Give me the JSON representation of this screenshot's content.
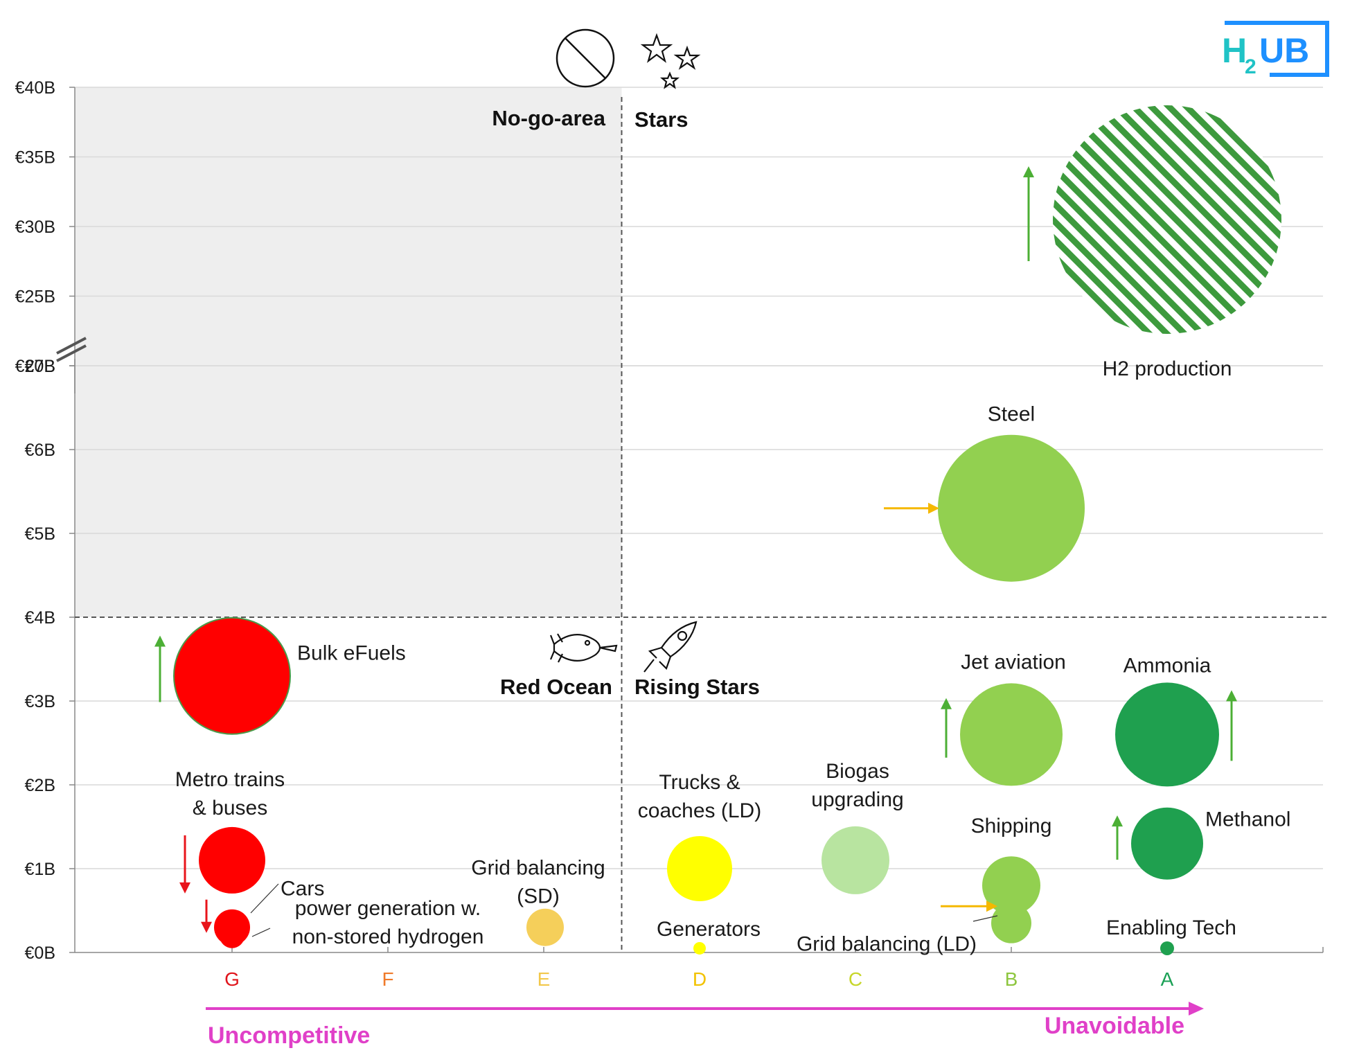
{
  "chart_data": {
    "type": "bubble",
    "y_axis": {
      "break_between": [
        "€7B",
        "€20B"
      ],
      "ticks": [
        "€0B",
        "€1B",
        "€2B",
        "€3B",
        "€4B",
        "€5B",
        "€6B",
        "€7B",
        "€20B",
        "€25B",
        "€30B",
        "€35B",
        "€40B"
      ]
    },
    "x_axis": {
      "categories": [
        "G",
        "F",
        "E",
        "D",
        "C",
        "B",
        "A"
      ],
      "category_colors": [
        "#e0141b",
        "#f07a2a",
        "#f2c84b",
        "#f2c200",
        "#c7d62a",
        "#8ec63f",
        "#1aa055"
      ],
      "left_label": "Uncompetitive",
      "right_label": "Unavoidable",
      "axis_label_color": "#e040c8"
    },
    "quadrants": {
      "top_left": "No-go-area",
      "top_right": "Stars",
      "bottom_left": "Red Ocean",
      "bottom_right": "Rising Stars",
      "x_split_between": [
        "E",
        "D"
      ],
      "y_split": 4
    },
    "logo": "H2UB",
    "series": [
      {
        "name": "H2 production",
        "x": "A",
        "y": 30.5,
        "color": "#3d9a3d",
        "hatched": true,
        "trend": "up"
      },
      {
        "name": "Steel",
        "x": "B",
        "y": 5.3,
        "color": "#92d050",
        "trend": "right"
      },
      {
        "name": "Bulk eFuels",
        "x": "G",
        "y": 3.3,
        "color": "#ff0000",
        "trend": "up"
      },
      {
        "name": "Jet aviation",
        "x": "B",
        "y": 2.6,
        "color": "#92d050",
        "trend": "up"
      },
      {
        "name": "Ammonia",
        "x": "A",
        "y": 2.6,
        "color": "#1fa04f",
        "trend": "up"
      },
      {
        "name": "Methanol",
        "x": "A",
        "y": 1.3,
        "color": "#1fa04f",
        "trend": "up"
      },
      {
        "name": "Metro trains & buses",
        "x": "G",
        "y": 1.1,
        "color": "#ff0000",
        "trend": "down"
      },
      {
        "name": "Cars",
        "x": "G",
        "y": 0.3,
        "color": "#ff0000",
        "trend": "down"
      },
      {
        "name": "power generation w. non-stored hydrogen",
        "x": "G",
        "y": 0.2,
        "color": "#ff0000"
      },
      {
        "name": "Grid balancing (SD)",
        "x": "E",
        "y": 0.3,
        "color": "#f5cf5a"
      },
      {
        "name": "Trucks & coaches (LD)",
        "x": "D",
        "y": 1.0,
        "color": "#ffff00"
      },
      {
        "name": "Generators",
        "x": "D",
        "y": 0.05,
        "color": "#ffff00"
      },
      {
        "name": "Biogas upgrading",
        "x": "C",
        "y": 1.1,
        "color": "#b8e4a0"
      },
      {
        "name": "Shipping",
        "x": "B",
        "y": 0.8,
        "color": "#92d050",
        "trend": "right"
      },
      {
        "name": "Grid balancing (LD)",
        "x": "B",
        "y": 0.35,
        "color": "#92d050"
      },
      {
        "name": "Enabling Tech",
        "x": "A",
        "y": 0.05,
        "color": "#1fa04f"
      }
    ],
    "label_lines": {
      "Metro trains & buses": [
        "Metro trains",
        "& buses"
      ],
      "power generation w. non-stored hydrogen": [
        "power generation w.",
        "non-stored hydrogen"
      ],
      "Grid balancing (SD)": [
        "Grid balancing",
        "(SD)"
      ],
      "Trucks & coaches (LD)": [
        "Trucks &",
        "coaches (LD)"
      ],
      "Biogas upgrading": [
        "Biogas",
        "upgrading"
      ]
    }
  }
}
